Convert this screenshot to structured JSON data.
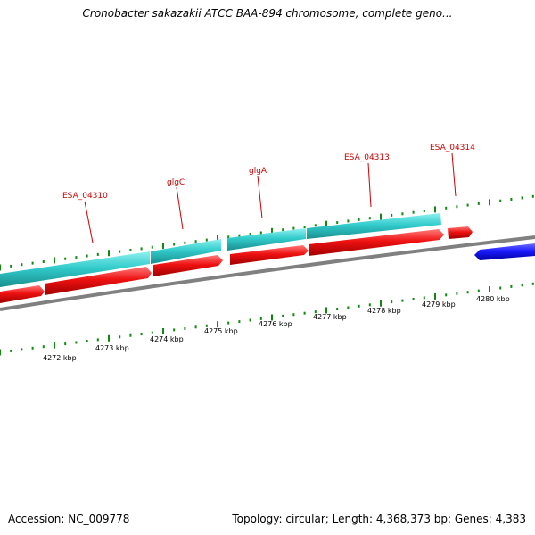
{
  "title": "Cronobacter sakazakii ATCC BAA-894 chromosome, complete geno...",
  "footer": {
    "accession": "Accession: NC_009778",
    "stats": "Topology: circular; Length: 4,368,373 bp; Genes: 4,383"
  },
  "colors": {
    "background": "#ffffff",
    "cyan_track": "#33cccc",
    "red_track": "#ee1111",
    "blue_track": "#1a1aff",
    "backbone": "#808080",
    "ticks": "#118811",
    "gene_label": "#cc0000"
  },
  "diagram": {
    "gene_labels": [
      "ESA_04310",
      "glgC",
      "glgA",
      "ESA_04313",
      "ESA_04314"
    ],
    "kbp_labels": [
      "4272 kbp",
      "4273 kbp",
      "4274 kbp",
      "4275 kbp",
      "4276 kbp",
      "4277 kbp",
      "4278 kbp",
      "4279 kbp",
      "4280 kbp"
    ]
  }
}
